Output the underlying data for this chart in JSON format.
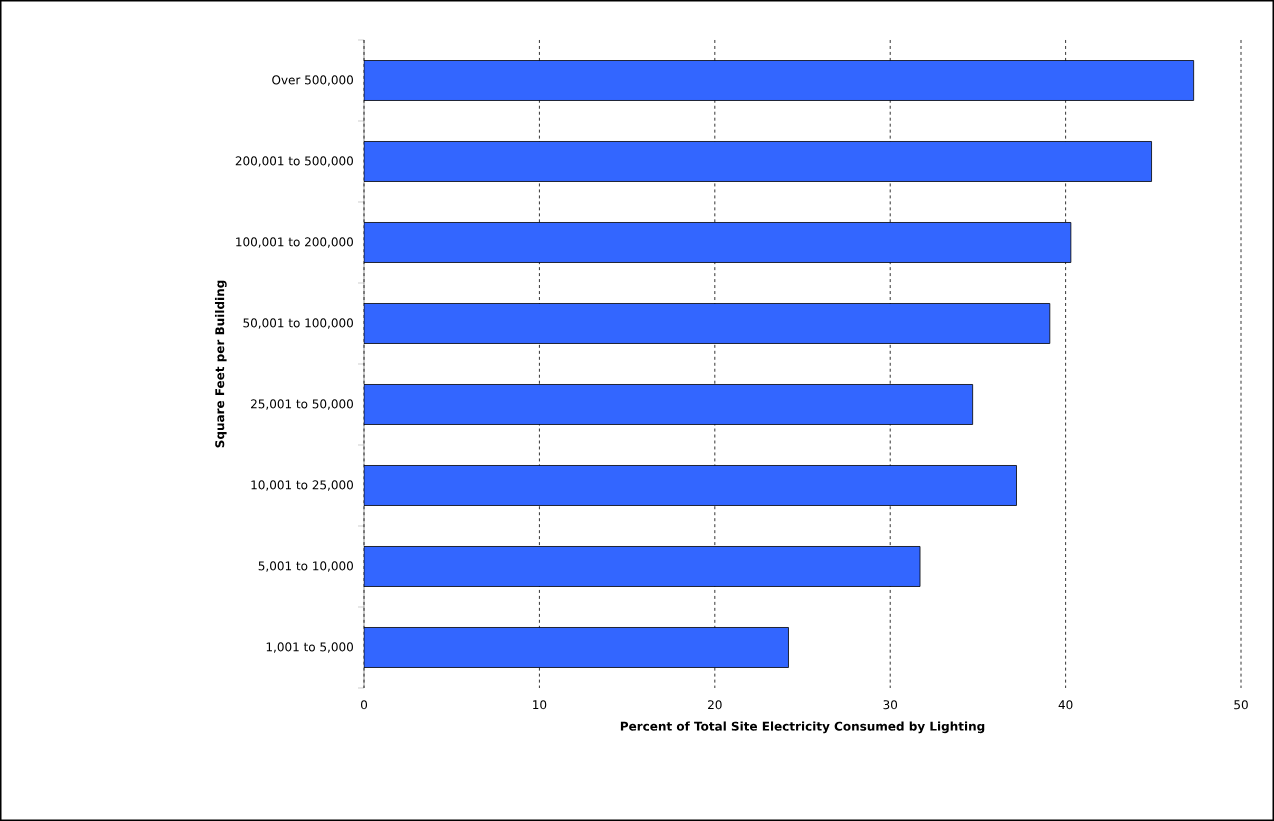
{
  "chart_data": {
    "type": "bar",
    "orientation": "horizontal",
    "categories": [
      "Over 500,000",
      "200,001 to 500,000",
      "100,001 to 200,000",
      "50,001 to 100,000",
      "25,001 to 50,000",
      "10,001 to 25,000",
      "5,001 to 10,000",
      "1,001 to 5,000"
    ],
    "values": [
      47.3,
      44.9,
      40.3,
      39.1,
      34.7,
      37.2,
      31.7,
      24.2
    ],
    "color": "#3366ff",
    "xlabel": "Percent of Total Site Electricity Consumed by Lighting",
    "ylabel": "Square Feet per Building",
    "xlim": [
      0,
      50
    ],
    "xticks": [
      0,
      10,
      20,
      30,
      40,
      50
    ],
    "grid": "x"
  }
}
